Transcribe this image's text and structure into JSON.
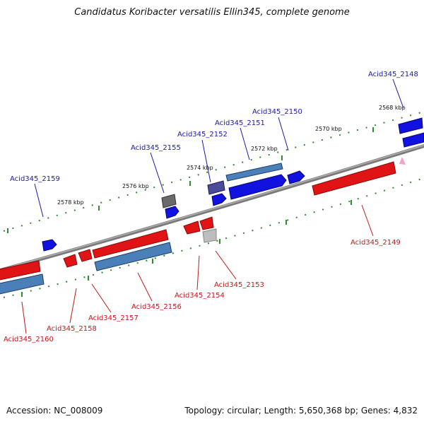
{
  "title": "Candidatus Koribacter versatilis Ellin345, complete genome",
  "footer": {
    "accession": "Accession: NC_008009",
    "summary": "Topology: circular; Length: 5,650,368 bp; Genes: 4,832"
  },
  "colors": {
    "backbone": "#7f7f7f",
    "ticks": "#2e8b2e",
    "forward_gene": "#1010e0",
    "reverse_gene": "#e01414",
    "rna_gene": "#4a7fb8",
    "other_gene": "#6a6a6a",
    "forward_label": "#1a1aa0",
    "reverse_label": "#c01818"
  },
  "scale_labels": [
    "2578 kbp",
    "2576 kbp",
    "2574 kbp",
    "2572 kbp",
    "2570 kbp",
    "2568 kbp"
  ],
  "gene_labels": {
    "forward": [
      "Acid345_2159",
      "Acid345_2155",
      "Acid345_2152",
      "Acid345_2151",
      "Acid345_2150",
      "Acid345_2148"
    ],
    "reverse": [
      "Acid345_2160",
      "Acid345_2158",
      "Acid345_2157",
      "Acid345_2156",
      "Acid345_2154",
      "Acid345_2153",
      "Acid345_2149"
    ]
  }
}
